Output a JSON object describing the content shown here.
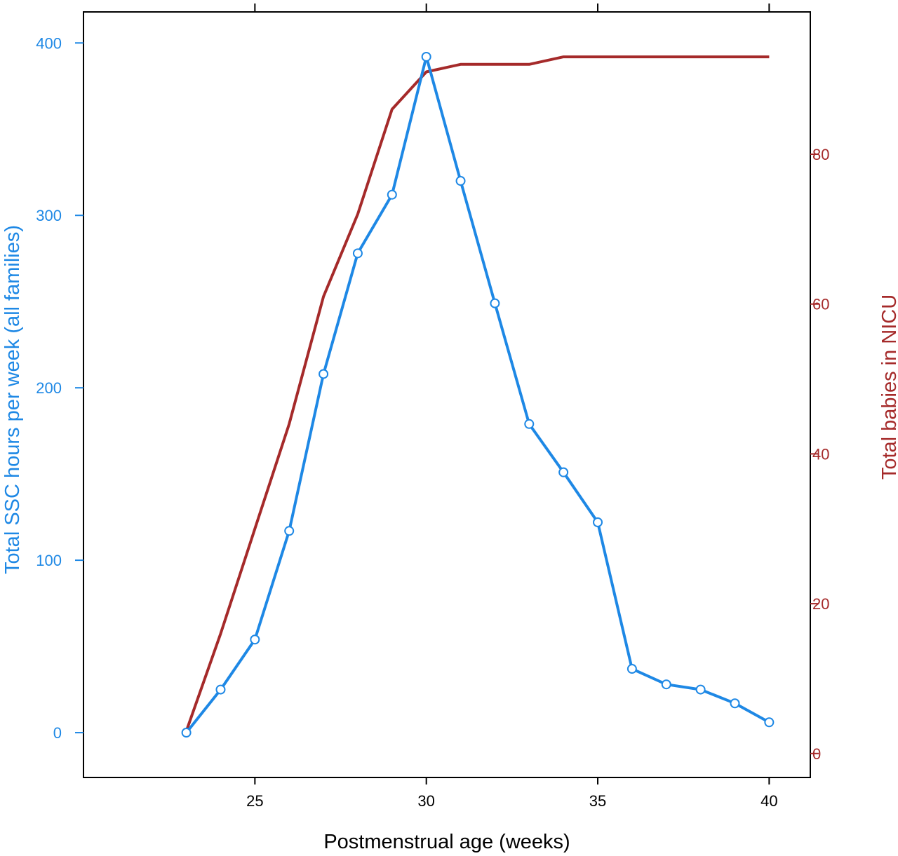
{
  "chart_data": {
    "type": "line",
    "title": "",
    "xlabel": "Postmenstrual age (weeks)",
    "ylabel": "Total SSC hours per week (all families)",
    "y2label": "Total babies in NICU",
    "x": [
      23,
      24,
      25,
      26,
      27,
      28,
      29,
      30,
      31,
      32,
      33,
      34,
      35,
      36,
      37,
      38,
      39,
      40
    ],
    "xlim": [
      20,
      41.2
    ],
    "ylim": [
      -26,
      418
    ],
    "y2lim": [
      -3.2,
      99
    ],
    "xticks": [
      25,
      30,
      35,
      40
    ],
    "yticks": [
      0,
      100,
      200,
      300,
      400
    ],
    "y2ticks": [
      0,
      20,
      40,
      60,
      80
    ],
    "grid": false,
    "series": [
      {
        "axis": "left",
        "color": "#1e88e5",
        "markers": true,
        "values": [
          0,
          25,
          54,
          117,
          208,
          278,
          312,
          392,
          320,
          249,
          179,
          151,
          122,
          37,
          28,
          25,
          17,
          6
        ]
      },
      {
        "axis": "right",
        "color": "#a52a2a",
        "markers": false,
        "values": [
          3,
          16,
          30,
          44,
          61,
          72,
          86,
          91,
          92,
          92,
          92,
          93,
          93,
          93,
          93,
          93,
          93,
          93
        ]
      }
    ]
  }
}
